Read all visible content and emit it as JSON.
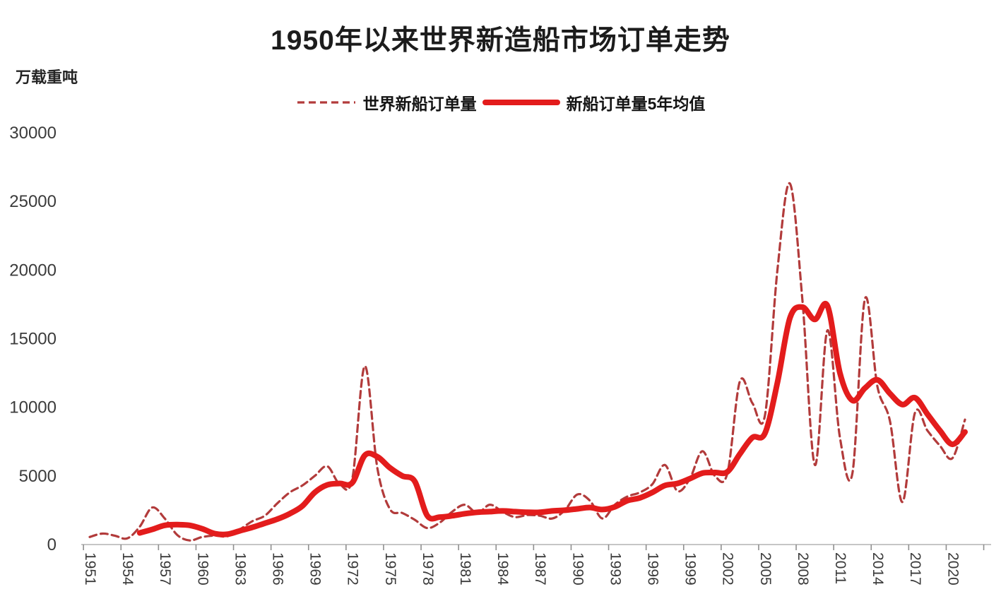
{
  "page": {
    "title": "1950年以来世界新造船市场订单走势",
    "y_axis_unit": "万载重吨"
  },
  "legend": {
    "annual": {
      "label": "世界新船订单量"
    },
    "average": {
      "label": "新船订单量5年均值"
    }
  },
  "colors": {
    "annual_line": "#b23b3b",
    "average_line": "#e31c1c",
    "axis_line": "#b3b3b3",
    "tick_mark": "#8f8f8f",
    "axis_text": "#3b3b3b"
  },
  "chart_data": {
    "type": "line",
    "title": "1950年以来世界新造船市场订单走势",
    "y_unit": "万载重吨",
    "xlabel": "",
    "ylabel": "万载重吨",
    "ylim": [
      0,
      30000
    ],
    "y_ticks": [
      0,
      5000,
      10000,
      15000,
      20000,
      25000,
      30000
    ],
    "x_tick_labels": [
      "1951",
      "1954",
      "1957",
      "1960",
      "1963",
      "1966",
      "1969",
      "1972",
      "1975",
      "1978",
      "1981",
      "1984",
      "1987",
      "1990",
      "1993",
      "1996",
      "1999",
      "2002",
      "2005",
      "2008",
      "2011",
      "2014",
      "2017",
      "2020"
    ],
    "grid": false,
    "legend_position": "top",
    "x": [
      1951,
      1952,
      1953,
      1954,
      1955,
      1956,
      1957,
      1958,
      1959,
      1960,
      1961,
      1962,
      1963,
      1964,
      1965,
      1966,
      1967,
      1968,
      1969,
      1970,
      1971,
      1972,
      1973,
      1974,
      1975,
      1976,
      1977,
      1978,
      1979,
      1980,
      1981,
      1982,
      1983,
      1984,
      1985,
      1986,
      1987,
      1988,
      1989,
      1990,
      1991,
      1992,
      1993,
      1994,
      1995,
      1996,
      1997,
      1998,
      1999,
      2000,
      2001,
      2002,
      2003,
      2004,
      2005,
      2006,
      2007,
      2008,
      2009,
      2010,
      2011,
      2012,
      2013,
      2014,
      2015,
      2016,
      2017,
      2018,
      2019,
      2020,
      2021
    ],
    "series": [
      {
        "name": "世界新船订单量",
        "style": "dashed",
        "color": "#b23b3b",
        "values": [
          550,
          800,
          650,
          450,
          1300,
          2700,
          1900,
          700,
          300,
          550,
          650,
          600,
          1100,
          1700,
          2100,
          3000,
          3800,
          4300,
          5000,
          5700,
          4400,
          4800,
          13000,
          5600,
          2600,
          2300,
          1800,
          1200,
          1600,
          2400,
          2900,
          2300,
          2900,
          2400,
          2000,
          2150,
          2100,
          1900,
          2500,
          3650,
          3200,
          1900,
          2900,
          3500,
          3800,
          4400,
          5800,
          3900,
          4800,
          6800,
          5000,
          5200,
          11900,
          10300,
          9400,
          20000,
          26300,
          17800,
          5800,
          15600,
          7800,
          5200,
          17900,
          11500,
          9000,
          3100,
          9600,
          8300,
          7200,
          6300,
          9100
        ]
      },
      {
        "name": "新船订单量5年均值",
        "style": "solid",
        "color": "#e31c1c",
        "values": [
          null,
          null,
          null,
          null,
          850,
          1100,
          1400,
          1450,
          1400,
          1150,
          800,
          750,
          1000,
          1250,
          1550,
          1850,
          2250,
          2800,
          3800,
          4350,
          4450,
          4500,
          6500,
          6400,
          5600,
          5000,
          4600,
          2100,
          2000,
          2100,
          2250,
          2350,
          2400,
          2450,
          2400,
          2350,
          2350,
          2450,
          2500,
          2600,
          2700,
          2550,
          2750,
          3200,
          3400,
          3800,
          4300,
          4450,
          4800,
          5200,
          5250,
          5300,
          6600,
          7800,
          8100,
          11800,
          16500,
          17300,
          16400,
          17400,
          12500,
          10500,
          11400,
          12000,
          11000,
          10200,
          10700,
          9500,
          8300,
          7300,
          8200
        ]
      }
    ]
  }
}
